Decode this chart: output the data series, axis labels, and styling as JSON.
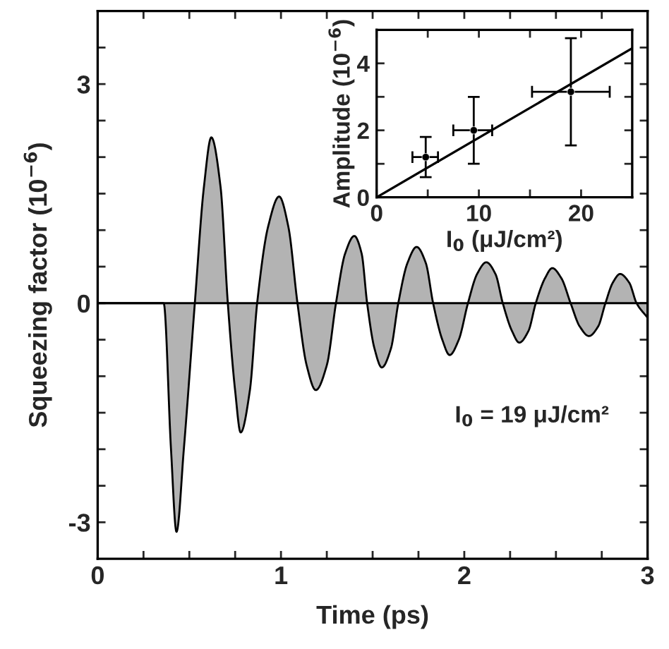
{
  "chart_data": [
    {
      "type": "area",
      "xlabel": "Time (ps)",
      "ylabel": "Squeezing factor (10$^{−6}$)",
      "x": [
        0,
        0.36,
        0.4,
        0.43,
        0.47,
        0.53,
        0.58,
        0.62,
        0.67,
        0.71,
        0.75,
        0.78,
        0.83,
        0.87,
        0.93,
        0.99,
        1.04,
        1.09,
        1.14,
        1.19,
        1.25,
        1.3,
        1.35,
        1.4,
        1.44,
        1.47,
        1.51,
        1.55,
        1.6,
        1.64,
        1.69,
        1.74,
        1.79,
        1.83,
        1.88,
        1.92,
        1.97,
        2.02,
        2.07,
        2.12,
        2.17,
        2.21,
        2.26,
        2.3,
        2.35,
        2.39,
        2.44,
        2.48,
        2.53,
        2.58,
        2.63,
        2.68,
        2.73,
        2.77,
        2.81,
        2.85,
        2.9,
        2.94,
        3.0
      ],
      "series": [
        {
          "color": "#b3b3b3",
          "values": [
            0,
            0,
            -2.0,
            -3.13,
            -2.0,
            0,
            1.6,
            2.27,
            1.6,
            0,
            -1.2,
            -1.77,
            -1.2,
            0,
            1.05,
            1.46,
            1.05,
            0,
            -0.85,
            -1.19,
            -0.85,
            0,
            0.68,
            0.92,
            0.68,
            0,
            -0.62,
            -0.88,
            -0.62,
            0,
            0.55,
            0.77,
            0.55,
            0,
            -0.5,
            -0.71,
            -0.5,
            0,
            0.4,
            0.56,
            0.4,
            0,
            -0.38,
            -0.54,
            -0.38,
            0,
            0.34,
            0.48,
            0.34,
            0,
            -0.32,
            -0.45,
            -0.32,
            0,
            0.28,
            0.4,
            0.28,
            0,
            -0.2
          ]
        }
      ],
      "xlim": [
        0,
        3
      ],
      "ylim": [
        -3.5,
        4
      ],
      "xticks": [
        0,
        {
          "value": 0.25,
          "label": null
        },
        {
          "value": 0.5,
          "label": null
        },
        {
          "value": 0.75,
          "label": null
        },
        1,
        {
          "value": 1.25,
          "label": null
        },
        {
          "value": 1.5,
          "label": null
        },
        {
          "value": 1.75,
          "label": null
        },
        2,
        {
          "value": 2.25,
          "label": null
        },
        {
          "value": 2.5,
          "label": null
        },
        {
          "value": 2.75,
          "label": null
        },
        3
      ],
      "yticks": [
        {
          "value": -3,
          "label": "-3"
        },
        {
          "value": -2.5,
          "label": null
        },
        {
          "value": -2,
          "label": null
        },
        {
          "value": -1.5,
          "label": null
        },
        {
          "value": -1,
          "label": null
        },
        {
          "value": -0.5,
          "label": null
        },
        0,
        {
          "value": 0.5,
          "label": null
        },
        {
          "value": 1,
          "label": null
        },
        {
          "value": 1.5,
          "label": null
        },
        {
          "value": 2,
          "label": null
        },
        {
          "value": 2.5,
          "label": null
        },
        3,
        {
          "value": 3.5,
          "label": null
        }
      ],
      "ref_lines": [
        {
          "axis": "y",
          "value": 0,
          "label": null,
          "color": "#000000"
        }
      ],
      "annotations": [
        "I$_{0}$ = 19 μJ/cm²"
      ],
      "grid": false,
      "legend": false
    },
    {
      "type": "scatter",
      "xlabel": "I$_{0}$ (μJ/cm²)",
      "ylabel": "Amplitude (10$^{−6}$)",
      "series": [
        {
          "type": "scatter",
          "marker": "circle",
          "color": "#000000",
          "x": [
            4.8,
            9.5,
            19
          ],
          "values": [
            1.2,
            2.0,
            3.15
          ],
          "errors": [
            [
              0.6,
              1.8
            ],
            [
              1.0,
              3.0
            ],
            [
              1.55,
              4.75
            ]
          ],
          "xerrors": [
            [
              3.5,
              6
            ],
            [
              7.5,
              11.3
            ],
            [
              15.2,
              22.8
            ]
          ]
        },
        {
          "type": "line",
          "color": "#000000",
          "x": [
            0,
            25
          ],
          "values": [
            0,
            4.45
          ]
        }
      ],
      "xlim": [
        0,
        25
      ],
      "ylim": [
        0,
        5
      ],
      "xticks": [
        0,
        {
          "value": 5,
          "label": null
        },
        10,
        {
          "value": 15,
          "label": null
        },
        20
      ],
      "yticks": [
        0,
        {
          "value": 1,
          "label": null
        },
        2,
        {
          "value": 3,
          "label": null
        },
        4
      ],
      "grid": false,
      "legend": false
    }
  ]
}
